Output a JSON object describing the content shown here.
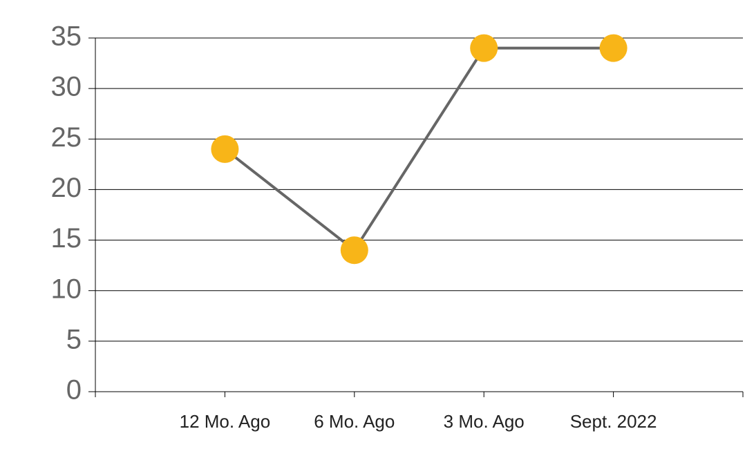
{
  "chart_data": {
    "type": "line",
    "categories": [
      "12 Mo. Ago",
      "6 Mo. Ago",
      "3 Mo. Ago",
      "Sept. 2022"
    ],
    "values": [
      24,
      14,
      34,
      34
    ],
    "color": "#f8b518",
    "line_color": "#666666",
    "ylim": [
      0,
      35
    ],
    "yticks": [
      0,
      5,
      10,
      15,
      20,
      25,
      30,
      35
    ],
    "grid": true
  }
}
